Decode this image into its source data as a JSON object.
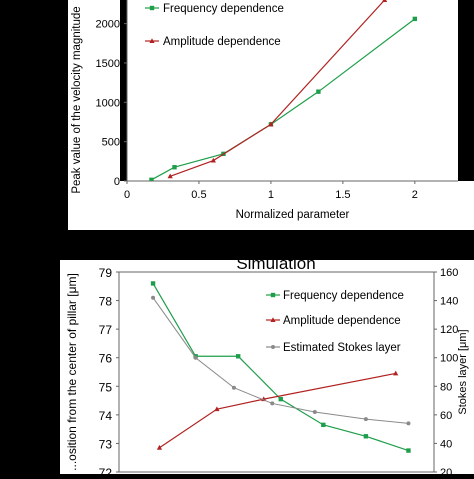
{
  "chart_data": [
    {
      "type": "line",
      "title": "",
      "xlabel": "Normalized parameter",
      "ylabel": "Peak value of the velocity magnitude",
      "xlim": [
        0,
        2.3
      ],
      "ylim": [
        0,
        2300
      ],
      "x_ticks": [
        "0",
        "0.5",
        "1",
        "1.5",
        "2"
      ],
      "y_ticks": [
        "0",
        "500",
        "1000",
        "1500",
        "2000"
      ],
      "legend_position": "top-left",
      "grid": false,
      "series": [
        {
          "name": "Frequency dependence",
          "color": "#1e9e4a",
          "marker": "square",
          "x": [
            0.17,
            0.33,
            0.67,
            1.0,
            1.33,
            2.0
          ],
          "y": [
            15,
            175,
            345,
            720,
            1135,
            2060
          ]
        },
        {
          "name": "Amplitude dependence",
          "color": "#b22222",
          "marker": "triangle",
          "x": [
            0.3,
            0.6,
            1.0,
            1.79
          ],
          "y": [
            60,
            260,
            720,
            2300
          ]
        }
      ]
    },
    {
      "type": "line",
      "title": "Simulation",
      "xlabel": "",
      "ylabel": "...osition from the center of pillar [μm]",
      "y2label": "Stokes layer [μm]",
      "ylim": [
        72,
        79
      ],
      "y2lim": [
        20,
        160
      ],
      "y_ticks": [
        "72",
        "73",
        "74",
        "75",
        "76",
        "77",
        "78",
        "79"
      ],
      "y2_ticks": [
        "20",
        "40",
        "60",
        "80",
        "100",
        "120",
        "140",
        "160"
      ],
      "legend_position": "top-right",
      "grid": false,
      "series": [
        {
          "name": "Frequency dependence",
          "color": "#1e9e4a",
          "marker": "square",
          "axis": "left",
          "x": [
            1,
            2,
            3,
            4,
            5,
            6,
            7
          ],
          "y": [
            78.6,
            76.05,
            76.05,
            74.55,
            73.65,
            73.25,
            72.75
          ]
        },
        {
          "name": "Amplitude dependence",
          "color": "#b22222",
          "marker": "triangle",
          "axis": "left",
          "x": [
            1.15,
            2.5,
            3.6,
            6.7
          ],
          "y": [
            72.85,
            74.2,
            74.55,
            75.45
          ]
        },
        {
          "name": "Estimated Stokes layer",
          "color": "#8a8a8a",
          "marker": "circle",
          "axis": "right",
          "x": [
            1,
            2,
            2.9,
            3.8,
            4.8,
            6.0,
            7.0
          ],
          "y": [
            142,
            100,
            79,
            68,
            62,
            57,
            54
          ]
        }
      ]
    }
  ]
}
